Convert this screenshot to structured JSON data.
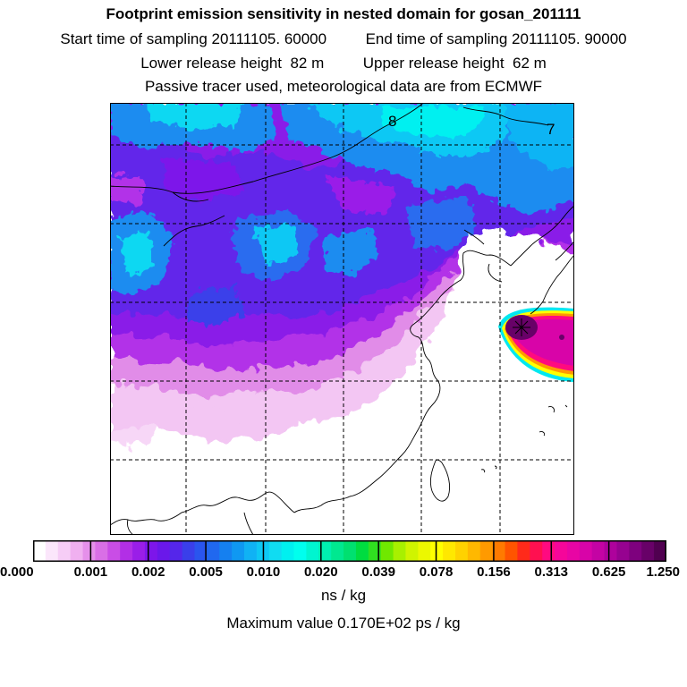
{
  "header": {
    "title": "Footprint emission sensitivity in nested domain for gosan_201111",
    "start_label": "Start time of sampling",
    "start_value": "20111105. 60000",
    "end_label": "End time of sampling",
    "end_value": "20111105. 90000",
    "lower_label": "Lower release height",
    "lower_value": "82 m",
    "upper_label": "Upper release height",
    "upper_value": "62 m",
    "tracer_note": "Passive tracer used, meteorological data are from ECMWF"
  },
  "map_labels": {
    "label_8": "8",
    "label_7": "7"
  },
  "colorbar": {
    "ticks": [
      "0.000",
      "0.001",
      "0.002",
      "0.005",
      "0.010",
      "0.020",
      "0.039",
      "0.078",
      "0.156",
      "0.313",
      "0.625",
      "1.250"
    ],
    "colors": [
      "#ffffff",
      "#fbe6fb",
      "#f6cdf6",
      "#f0b0f0",
      "#e590ea",
      "#d96fe6",
      "#c94de6",
      "#b22fe6",
      "#9a1ee8",
      "#7d16ea",
      "#6a18ea",
      "#5526ea",
      "#3a3fea",
      "#2a55ee",
      "#2068ef",
      "#1580f0",
      "#0f98f2",
      "#10b2f4",
      "#0ec8f4",
      "#10dcf2",
      "#00f0f0",
      "#00ffee",
      "#00f5d0",
      "#00efb0",
      "#00e890",
      "#00e070",
      "#00dc40",
      "#30e020",
      "#70e800",
      "#a8f000",
      "#d0f400",
      "#ecf800",
      "#ffff00",
      "#ffe800",
      "#ffd200",
      "#ffb800",
      "#ff9a00",
      "#ff7a00",
      "#ff5400",
      "#ff2a1a",
      "#ff1050",
      "#ff0a80",
      "#f5069a",
      "#e805a4",
      "#d804a8",
      "#c403a4",
      "#ae029c",
      "#960290",
      "#7e017e",
      "#680168",
      "#500050"
    ],
    "units": "ns / kg"
  },
  "max_value_text": "Maximum value  0.170E+02 ps / kg"
}
